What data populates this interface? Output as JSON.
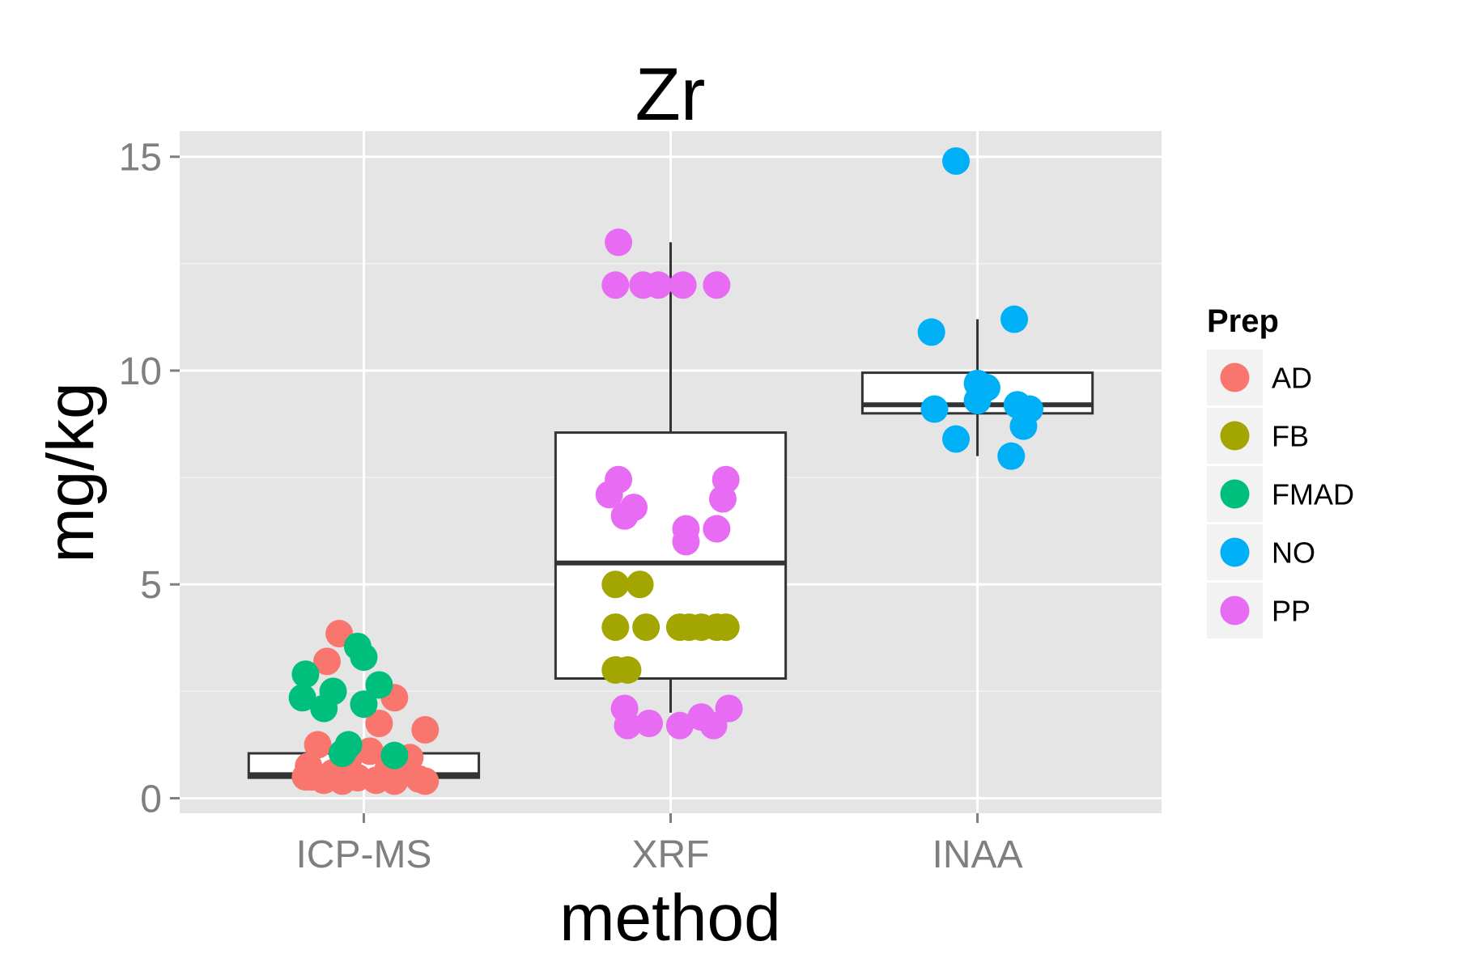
{
  "chart_data": {
    "type": "box",
    "title": "Zr",
    "xlabel": "method",
    "ylabel": "mg/kg",
    "categories": [
      "ICP-MS",
      "XRF",
      "INAA"
    ],
    "ylim": [
      -0.35,
      15.6
    ],
    "yticks": [
      0,
      5,
      10,
      15
    ],
    "ytick_labels": [
      "0",
      "5",
      "10",
      "15"
    ],
    "grid": true,
    "legend": {
      "title": "Prep",
      "position": "right",
      "entries": [
        {
          "label": "AD",
          "color": "#F8766D"
        },
        {
          "label": "FB",
          "color": "#A3A500"
        },
        {
          "label": "FMAD",
          "color": "#00BF7D"
        },
        {
          "label": "NO",
          "color": "#00B0F6"
        },
        {
          "label": "PP",
          "color": "#E76BF3"
        }
      ]
    },
    "boxes": [
      {
        "category": "ICP-MS",
        "min": 0.45,
        "q1": 0.48,
        "median": 0.55,
        "q3": 1.05,
        "max": 1.05
      },
      {
        "category": "XRF",
        "min": 2.0,
        "q1": 2.8,
        "median": 5.5,
        "q3": 8.55,
        "max": 13.0
      },
      {
        "category": "INAA",
        "min": 8.0,
        "q1": 9.0,
        "median": 9.2,
        "q3": 9.95,
        "max": 11.2
      }
    ],
    "points": [
      {
        "method": "ICP-MS",
        "prep": "AD",
        "x": -0.08,
        "y": 3.85
      },
      {
        "method": "ICP-MS",
        "prep": "AD",
        "x": -0.12,
        "y": 3.2
      },
      {
        "method": "ICP-MS",
        "prep": "AD",
        "x": 0.1,
        "y": 2.35
      },
      {
        "method": "ICP-MS",
        "prep": "AD",
        "x": 0.05,
        "y": 1.75
      },
      {
        "method": "ICP-MS",
        "prep": "AD",
        "x": 0.2,
        "y": 1.6
      },
      {
        "method": "ICP-MS",
        "prep": "AD",
        "x": -0.15,
        "y": 1.25
      },
      {
        "method": "ICP-MS",
        "prep": "AD",
        "x": 0.02,
        "y": 1.1
      },
      {
        "method": "ICP-MS",
        "prep": "AD",
        "x": 0.15,
        "y": 0.95
      },
      {
        "method": "ICP-MS",
        "prep": "AD",
        "x": -0.05,
        "y": 0.9
      },
      {
        "method": "ICP-MS",
        "prep": "AD",
        "x": -0.18,
        "y": 0.75
      },
      {
        "method": "ICP-MS",
        "prep": "AD",
        "x": 0.08,
        "y": 0.7
      },
      {
        "method": "ICP-MS",
        "prep": "AD",
        "x": -0.1,
        "y": 0.6
      },
      {
        "method": "ICP-MS",
        "prep": "AD",
        "x": 0.12,
        "y": 0.58
      },
      {
        "method": "ICP-MS",
        "prep": "AD",
        "x": -0.17,
        "y": 0.5
      },
      {
        "method": "ICP-MS",
        "prep": "AD",
        "x": -0.02,
        "y": 0.48
      },
      {
        "method": "ICP-MS",
        "prep": "AD",
        "x": 0.18,
        "y": 0.45
      },
      {
        "method": "ICP-MS",
        "prep": "AD",
        "x": -0.13,
        "y": 0.42
      },
      {
        "method": "ICP-MS",
        "prep": "AD",
        "x": 0.04,
        "y": 0.42
      },
      {
        "method": "ICP-MS",
        "prep": "AD",
        "x": 0.2,
        "y": 0.4
      },
      {
        "method": "ICP-MS",
        "prep": "AD",
        "x": -0.07,
        "y": 0.4
      },
      {
        "method": "ICP-MS",
        "prep": "AD",
        "x": 0.1,
        "y": 0.4
      },
      {
        "method": "ICP-MS",
        "prep": "AD",
        "x": -0.19,
        "y": 0.5
      },
      {
        "method": "ICP-MS",
        "prep": "FMAD",
        "x": -0.02,
        "y": 3.55
      },
      {
        "method": "ICP-MS",
        "prep": "FMAD",
        "x": 0.0,
        "y": 3.3
      },
      {
        "method": "ICP-MS",
        "prep": "FMAD",
        "x": -0.19,
        "y": 2.9
      },
      {
        "method": "ICP-MS",
        "prep": "FMAD",
        "x": 0.05,
        "y": 2.65
      },
      {
        "method": "ICP-MS",
        "prep": "FMAD",
        "x": -0.1,
        "y": 2.5
      },
      {
        "method": "ICP-MS",
        "prep": "FMAD",
        "x": -0.2,
        "y": 2.35
      },
      {
        "method": "ICP-MS",
        "prep": "FMAD",
        "x": 0.0,
        "y": 2.2
      },
      {
        "method": "ICP-MS",
        "prep": "FMAD",
        "x": -0.13,
        "y": 2.1
      },
      {
        "method": "ICP-MS",
        "prep": "FMAD",
        "x": -0.05,
        "y": 1.25
      },
      {
        "method": "ICP-MS",
        "prep": "FMAD",
        "x": -0.07,
        "y": 1.05
      },
      {
        "method": "ICP-MS",
        "prep": "FMAD",
        "x": 0.1,
        "y": 1.0
      },
      {
        "method": "XRF",
        "prep": "PP",
        "x": -0.17,
        "y": 13.0
      },
      {
        "method": "XRF",
        "prep": "PP",
        "x": -0.18,
        "y": 12.0
      },
      {
        "method": "XRF",
        "prep": "PP",
        "x": -0.09,
        "y": 12.0
      },
      {
        "method": "XRF",
        "prep": "PP",
        "x": -0.04,
        "y": 12.0
      },
      {
        "method": "XRF",
        "prep": "PP",
        "x": 0.04,
        "y": 12.0
      },
      {
        "method": "XRF",
        "prep": "PP",
        "x": 0.15,
        "y": 12.0
      },
      {
        "method": "XRF",
        "prep": "PP",
        "x": -0.17,
        "y": 7.45
      },
      {
        "method": "XRF",
        "prep": "PP",
        "x": 0.18,
        "y": 7.45
      },
      {
        "method": "XRF",
        "prep": "PP",
        "x": -0.2,
        "y": 7.1
      },
      {
        "method": "XRF",
        "prep": "PP",
        "x": 0.17,
        "y": 7.0
      },
      {
        "method": "XRF",
        "prep": "PP",
        "x": -0.12,
        "y": 6.8
      },
      {
        "method": "XRF",
        "prep": "PP",
        "x": -0.15,
        "y": 6.6
      },
      {
        "method": "XRF",
        "prep": "PP",
        "x": 0.05,
        "y": 6.3
      },
      {
        "method": "XRF",
        "prep": "PP",
        "x": 0.15,
        "y": 6.3
      },
      {
        "method": "XRF",
        "prep": "PP",
        "x": 0.05,
        "y": 6.0
      },
      {
        "method": "XRF",
        "prep": "PP",
        "x": -0.15,
        "y": 2.1
      },
      {
        "method": "XRF",
        "prep": "PP",
        "x": 0.19,
        "y": 2.1
      },
      {
        "method": "XRF",
        "prep": "PP",
        "x": 0.1,
        "y": 1.9
      },
      {
        "method": "XRF",
        "prep": "PP",
        "x": -0.07,
        "y": 1.75
      },
      {
        "method": "XRF",
        "prep": "PP",
        "x": -0.14,
        "y": 1.7
      },
      {
        "method": "XRF",
        "prep": "PP",
        "x": 0.03,
        "y": 1.7
      },
      {
        "method": "XRF",
        "prep": "PP",
        "x": 0.14,
        "y": 1.7
      },
      {
        "method": "XRF",
        "prep": "FB",
        "x": -0.18,
        "y": 5.0
      },
      {
        "method": "XRF",
        "prep": "FB",
        "x": -0.1,
        "y": 5.0
      },
      {
        "method": "XRF",
        "prep": "FB",
        "x": -0.18,
        "y": 4.0
      },
      {
        "method": "XRF",
        "prep": "FB",
        "x": -0.08,
        "y": 4.0
      },
      {
        "method": "XRF",
        "prep": "FB",
        "x": 0.03,
        "y": 4.0
      },
      {
        "method": "XRF",
        "prep": "FB",
        "x": 0.06,
        "y": 4.0
      },
      {
        "method": "XRF",
        "prep": "FB",
        "x": 0.1,
        "y": 4.0
      },
      {
        "method": "XRF",
        "prep": "FB",
        "x": 0.15,
        "y": 4.0
      },
      {
        "method": "XRF",
        "prep": "FB",
        "x": 0.18,
        "y": 4.0
      },
      {
        "method": "XRF",
        "prep": "FB",
        "x": -0.18,
        "y": 3.0
      },
      {
        "method": "XRF",
        "prep": "FB",
        "x": -0.14,
        "y": 3.0
      },
      {
        "method": "INAA",
        "prep": "NO",
        "x": -0.07,
        "y": 14.9
      },
      {
        "method": "INAA",
        "prep": "NO",
        "x": 0.12,
        "y": 11.2
      },
      {
        "method": "INAA",
        "prep": "NO",
        "x": -0.15,
        "y": 10.9
      },
      {
        "method": "INAA",
        "prep": "NO",
        "x": 0.0,
        "y": 9.7
      },
      {
        "method": "INAA",
        "prep": "NO",
        "x": 0.03,
        "y": 9.6
      },
      {
        "method": "INAA",
        "prep": "NO",
        "x": 0.0,
        "y": 9.3
      },
      {
        "method": "INAA",
        "prep": "NO",
        "x": 0.13,
        "y": 9.2
      },
      {
        "method": "INAA",
        "prep": "NO",
        "x": -0.14,
        "y": 9.1
      },
      {
        "method": "INAA",
        "prep": "NO",
        "x": 0.17,
        "y": 9.1
      },
      {
        "method": "INAA",
        "prep": "NO",
        "x": 0.15,
        "y": 8.7
      },
      {
        "method": "INAA",
        "prep": "NO",
        "x": -0.07,
        "y": 8.4
      },
      {
        "method": "INAA",
        "prep": "NO",
        "x": 0.11,
        "y": 8.0
      }
    ]
  }
}
